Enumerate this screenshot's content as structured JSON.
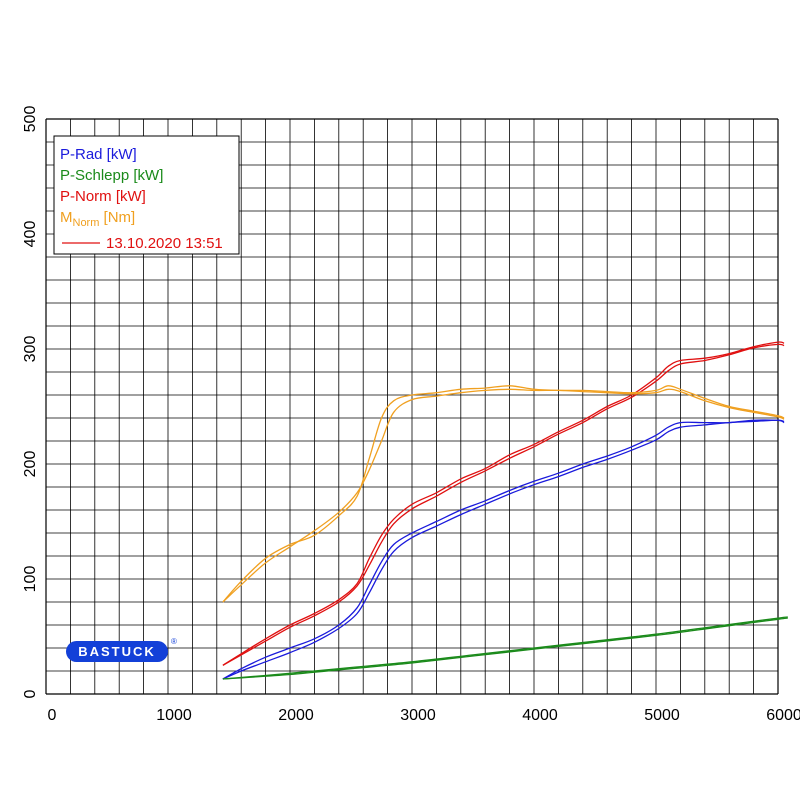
{
  "chart_data": {
    "type": "line",
    "xlim": [
      0,
      6000
    ],
    "ylim": [
      0,
      500
    ],
    "x_ticks": [
      "0",
      "1000",
      "2000",
      "3000",
      "4000",
      "5000",
      "6000"
    ],
    "y_ticks": [
      "0",
      "100",
      "200",
      "300",
      "400",
      "500"
    ],
    "grid": true,
    "legend_position": "top-left",
    "brand": "BASTUCK",
    "registered_mark": "®",
    "legend": {
      "entries": [
        {
          "label": "P-Rad [kW]",
          "color": "#1a1adc"
        },
        {
          "label": "P-Schlepp [kW]",
          "color": "#1a8a1a"
        },
        {
          "label": "P-Norm [kW]",
          "color": "#e01010"
        },
        {
          "label_main": "M",
          "label_sub": "Norm",
          "label_rest": " [Nm]",
          "color": "#f0a020"
        }
      ],
      "run": {
        "label": "13.10.2020 13:51",
        "color": "#e01010"
      }
    },
    "series": [
      {
        "name": "P-Rad [kW]",
        "color": "#1a1adc",
        "x": [
          1450,
          1600,
          1800,
          2000,
          2200,
          2400,
          2550,
          2650,
          2750,
          2850,
          3000,
          3200,
          3400,
          3600,
          3800,
          4000,
          4200,
          4400,
          4600,
          4800,
          5000,
          5100,
          5200,
          5400,
          5600,
          5800,
          6000,
          6050
        ],
        "y": [
          13,
          22,
          32,
          40,
          48,
          60,
          75,
          95,
          115,
          130,
          140,
          150,
          160,
          168,
          177,
          185,
          192,
          200,
          207,
          215,
          225,
          232,
          236,
          236,
          236,
          238,
          238,
          237
        ],
        "y2": [
          13,
          20,
          28,
          36,
          45,
          57,
          70,
          88,
          108,
          124,
          136,
          146,
          156,
          165,
          174,
          182,
          189,
          197,
          204,
          212,
          221,
          228,
          232,
          234,
          236,
          237,
          238,
          236
        ]
      },
      {
        "name": "P-Schlepp [kW]",
        "color": "#1a8a1a",
        "x": [
          1450,
          2000,
          2500,
          3000,
          3500,
          4000,
          4500,
          5000,
          5500,
          6000,
          6080
        ],
        "y": [
          13,
          18,
          23,
          28,
          34,
          40,
          46,
          52,
          59,
          66,
          67
        ],
        "y2": [
          13,
          17,
          22,
          27,
          33,
          39,
          45,
          51,
          58,
          65,
          66
        ]
      },
      {
        "name": "P-Norm [kW]",
        "color": "#e01010",
        "x": [
          1450,
          1600,
          1800,
          2000,
          2200,
          2400,
          2550,
          2650,
          2750,
          2850,
          3000,
          3200,
          3400,
          3600,
          3800,
          4000,
          4200,
          4400,
          4600,
          4800,
          5000,
          5100,
          5200,
          5400,
          5600,
          5800,
          6000,
          6050
        ],
        "y": [
          25,
          35,
          48,
          60,
          70,
          82,
          96,
          118,
          138,
          152,
          165,
          175,
          187,
          196,
          208,
          217,
          228,
          238,
          250,
          260,
          275,
          285,
          290,
          292,
          296,
          302,
          306,
          305
        ],
        "y2": [
          25,
          34,
          46,
          58,
          68,
          80,
          94,
          112,
          132,
          148,
          161,
          172,
          184,
          194,
          205,
          215,
          226,
          236,
          248,
          258,
          272,
          281,
          287,
          290,
          295,
          301,
          304,
          303
        ]
      },
      {
        "name": "MNorm [Nm]",
        "color": "#f0a020",
        "x": [
          1450,
          1600,
          1800,
          2000,
          2200,
          2400,
          2550,
          2650,
          2750,
          2850,
          3000,
          3200,
          3400,
          3600,
          3800,
          4000,
          4200,
          4400,
          4600,
          4800,
          5000,
          5100,
          5200,
          5400,
          5600,
          5800,
          6000,
          6050
        ],
        "y": [
          80,
          98,
          118,
          130,
          138,
          155,
          172,
          205,
          240,
          255,
          260,
          262,
          265,
          266,
          268,
          265,
          264,
          264,
          263,
          262,
          264,
          268,
          265,
          257,
          250,
          246,
          242,
          240
        ],
        "y2": [
          80,
          95,
          114,
          128,
          142,
          158,
          175,
          195,
          220,
          245,
          256,
          259,
          262,
          264,
          265,
          264,
          264,
          263,
          262,
          261,
          262,
          265,
          263,
          255,
          249,
          245,
          241,
          239
        ]
      }
    ]
  }
}
